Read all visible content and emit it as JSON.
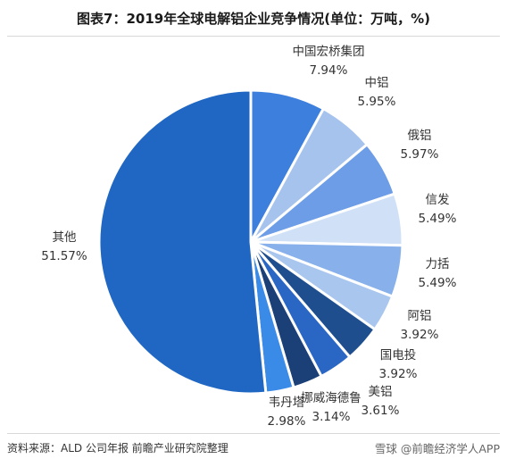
{
  "title": "图表7：2019年全球电解铝企业竞争情况(单位：万吨，%)",
  "source": "资料来源：ALD 公司年报 前瞻产业研究院整理",
  "watermark": "雪球 @前瞻经济学人APP",
  "chart_data": {
    "type": "pie",
    "start_angle_deg": 0,
    "direction": "clockwise",
    "slices": [
      {
        "name": "中国宏桥集团",
        "value": 7.94,
        "label": "7.94%",
        "color": "#3d7fdc"
      },
      {
        "name": "中铝",
        "value": 5.95,
        "label": "5.95%",
        "color": "#a6c3ee"
      },
      {
        "name": "俄铝",
        "value": 5.97,
        "label": "5.97%",
        "color": "#6d9de6"
      },
      {
        "name": "信发",
        "value": 5.49,
        "label": "5.49%",
        "color": "#cfe0f7"
      },
      {
        "name": "力括",
        "value": 5.49,
        "label": "5.49%",
        "color": "#88b1ec"
      },
      {
        "name": "阿铝",
        "value": 3.92,
        "label": "3.92%",
        "color": "#a9c6ef"
      },
      {
        "name": "国电投",
        "value": 3.92,
        "label": "3.92%",
        "color": "#1f4e8f"
      },
      {
        "name": "美铝",
        "value": 3.61,
        "label": "3.61%",
        "color": "#2a66c4"
      },
      {
        "name": "挪威海德鲁",
        "value": 3.14,
        "label": "3.14%",
        "color": "#1b3f77"
      },
      {
        "name": "韦丹塔",
        "value": 2.98,
        "label": "2.98%",
        "color": "#3a8ae8"
      },
      {
        "name": "其他",
        "value": 51.57,
        "label": "51.57%",
        "color": "#1f67c3"
      }
    ]
  }
}
